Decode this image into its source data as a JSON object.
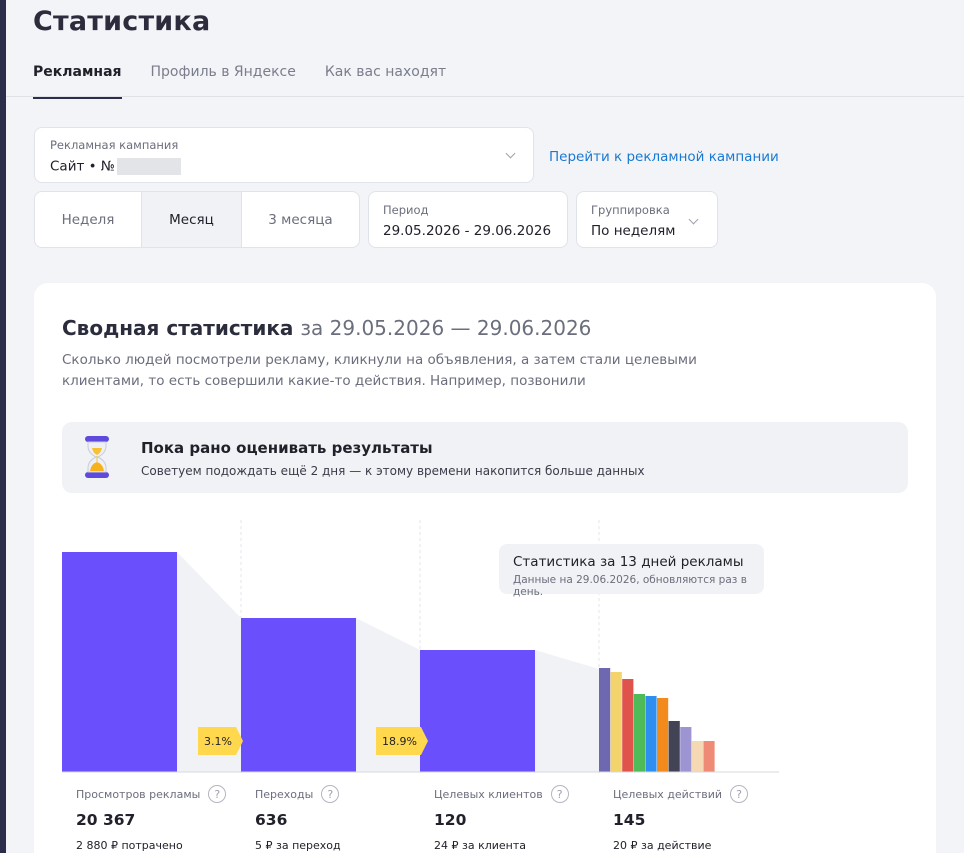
{
  "page": {
    "title": "Статистика"
  },
  "tabs": [
    {
      "label": "Рекламная",
      "active": true
    },
    {
      "label": "Профиль в Яндексе",
      "active": false
    },
    {
      "label": "Как вас находят",
      "active": false
    }
  ],
  "campaign": {
    "label": "Рекламная кампания",
    "value": "Сайт • №",
    "go_link": "Перейти к рекламной кампании"
  },
  "period_segments": [
    {
      "label": "Неделя",
      "selected": false
    },
    {
      "label": "Месяц",
      "selected": true
    },
    {
      "label": "3 месяца",
      "selected": false
    }
  ],
  "period": {
    "label": "Период",
    "value": "29.05.2026 - 29.06.2026"
  },
  "grouping": {
    "label": "Группировка",
    "value": "По неделям"
  },
  "summary": {
    "title": "Сводная статистика",
    "date_range": "за 29.05.2026 — 29.06.2026",
    "description": "Сколько людей посмотрели рекламу, кликнули на объявления, а затем стали целевыми клиентами, то есть совершили какие-то действия. Например, позвонили"
  },
  "notice": {
    "title": "Пока рано оценивать результаты",
    "text": "Советуем подождать ещё 2 дня — к этому времени накопится больше данных"
  },
  "tooltip": {
    "title": "Статистика за 13 дней рекламы",
    "subtitle": "Данные на 29.06.2026, обновляются раз в день."
  },
  "metrics": [
    {
      "label": "Просмотров рекламы",
      "value": "20 367",
      "sub": "2 880 ₽ потрачено"
    },
    {
      "label": "Переходы",
      "value": "636",
      "sub": "5 ₽ за переход"
    },
    {
      "label": "Целевых клиентов",
      "value": "120",
      "sub": "24 ₽ за клиента"
    },
    {
      "label": "Целевых действий",
      "value": "145",
      "sub": "20 ₽ за действие"
    }
  ],
  "chart_data": {
    "type": "bar",
    "categories": [
      "Просмотров рекламы",
      "Переходы",
      "Целевых клиентов",
      "Целевых действий"
    ],
    "values": [
      20367,
      636,
      120,
      145
    ],
    "conversion_labels": [
      "3.1%",
      "18.9%"
    ],
    "actions_breakdown_colors": [
      "#6d68b0",
      "#f3d36b",
      "#e0524c",
      "#4fba5a",
      "#2f8ff0",
      "#f28a1c",
      "#434356",
      "#9c95d1",
      "#f5d9b4",
      "#ee8a76"
    ],
    "bar_color": "#6950fc",
    "accent_badge_color": "#ffd84d"
  }
}
